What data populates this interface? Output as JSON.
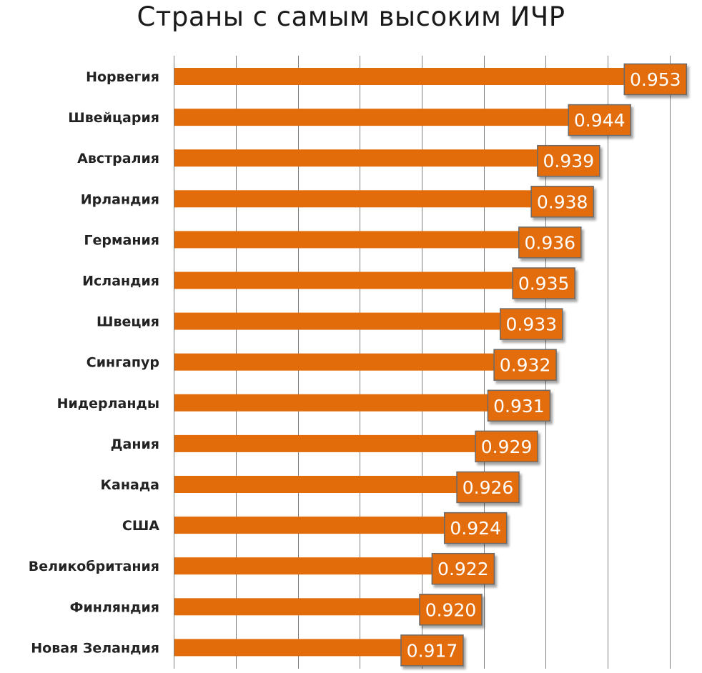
{
  "chart_data": {
    "type": "bar",
    "orientation": "horizontal",
    "title": "Страны с самым высоким ИЧР",
    "xlabel": "",
    "ylabel": "",
    "categories": [
      "Норвегия",
      "Швейцария",
      "Австралия",
      "Ирландия",
      "Германия",
      "Исландия",
      "Швеция",
      "Сингапур",
      "Нидерланды",
      "Дания",
      "Канада",
      "США",
      "Великобритания",
      "Финляндия",
      "Новая Зеландия"
    ],
    "values": [
      0.953,
      0.944,
      0.939,
      0.938,
      0.936,
      0.935,
      0.933,
      0.932,
      0.931,
      0.929,
      0.926,
      0.924,
      0.922,
      0.92,
      0.917
    ],
    "data_labels": [
      "0.953",
      "0.944",
      "0.939",
      "0.938",
      "0.936",
      "0.935",
      "0.933",
      "0.932",
      "0.931",
      "0.929",
      "0.926",
      "0.924",
      "0.922",
      "0.920",
      "0.917"
    ],
    "xlim": [
      0.88,
      0.96
    ],
    "grid": true,
    "legend": "none",
    "colors": {
      "bar": "#e36c0a",
      "label_box": "#e36c0a",
      "label_border": "#6b6b6b",
      "grid": "#7f7f7f"
    }
  }
}
